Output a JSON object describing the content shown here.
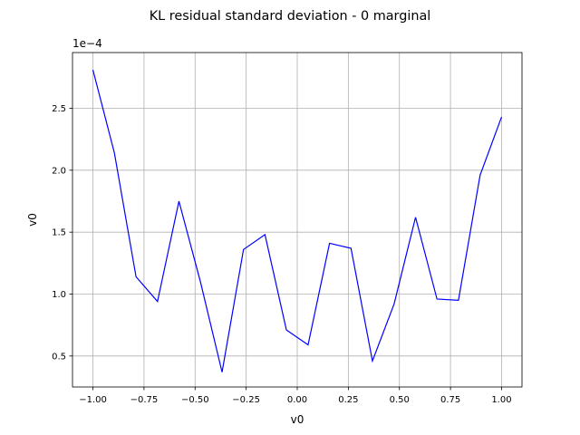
{
  "chart_data": {
    "type": "line",
    "title": "KL residual standard deviation - 0 marginal",
    "xlabel": "v0",
    "ylabel": "v0",
    "y_offset_label": "1e−4",
    "xlim": [
      -1.1,
      1.1
    ],
    "ylim": [
      0.25,
      2.95
    ],
    "grid": true,
    "line_color": "#0000ff",
    "x_ticks": [
      -1.0,
      -0.75,
      -0.5,
      -0.25,
      0.0,
      0.25,
      0.5,
      0.75,
      1.0
    ],
    "x_tick_labels": [
      "−1.00",
      "−0.75",
      "−0.50",
      "−0.25",
      "0.00",
      "0.25",
      "0.50",
      "0.75",
      "1.00"
    ],
    "y_ticks": [
      0.5,
      1.0,
      1.5,
      2.0,
      2.5
    ],
    "y_tick_labels": [
      "0.5",
      "1.0",
      "1.5",
      "2.0",
      "2.5"
    ],
    "series": [
      {
        "x": [
          -1.0,
          -0.895,
          -0.789,
          -0.684,
          -0.579,
          -0.474,
          -0.368,
          -0.263,
          -0.158,
          -0.053,
          0.053,
          0.158,
          0.263,
          0.368,
          0.474,
          0.579,
          0.684,
          0.789,
          0.895,
          1.0
        ],
        "y": [
          2.81,
          2.14,
          1.14,
          0.94,
          1.75,
          1.1,
          0.37,
          1.36,
          1.48,
          0.71,
          0.59,
          1.41,
          1.37,
          0.46,
          0.92,
          1.62,
          0.96,
          0.95,
          1.96,
          2.43
        ]
      }
    ]
  }
}
